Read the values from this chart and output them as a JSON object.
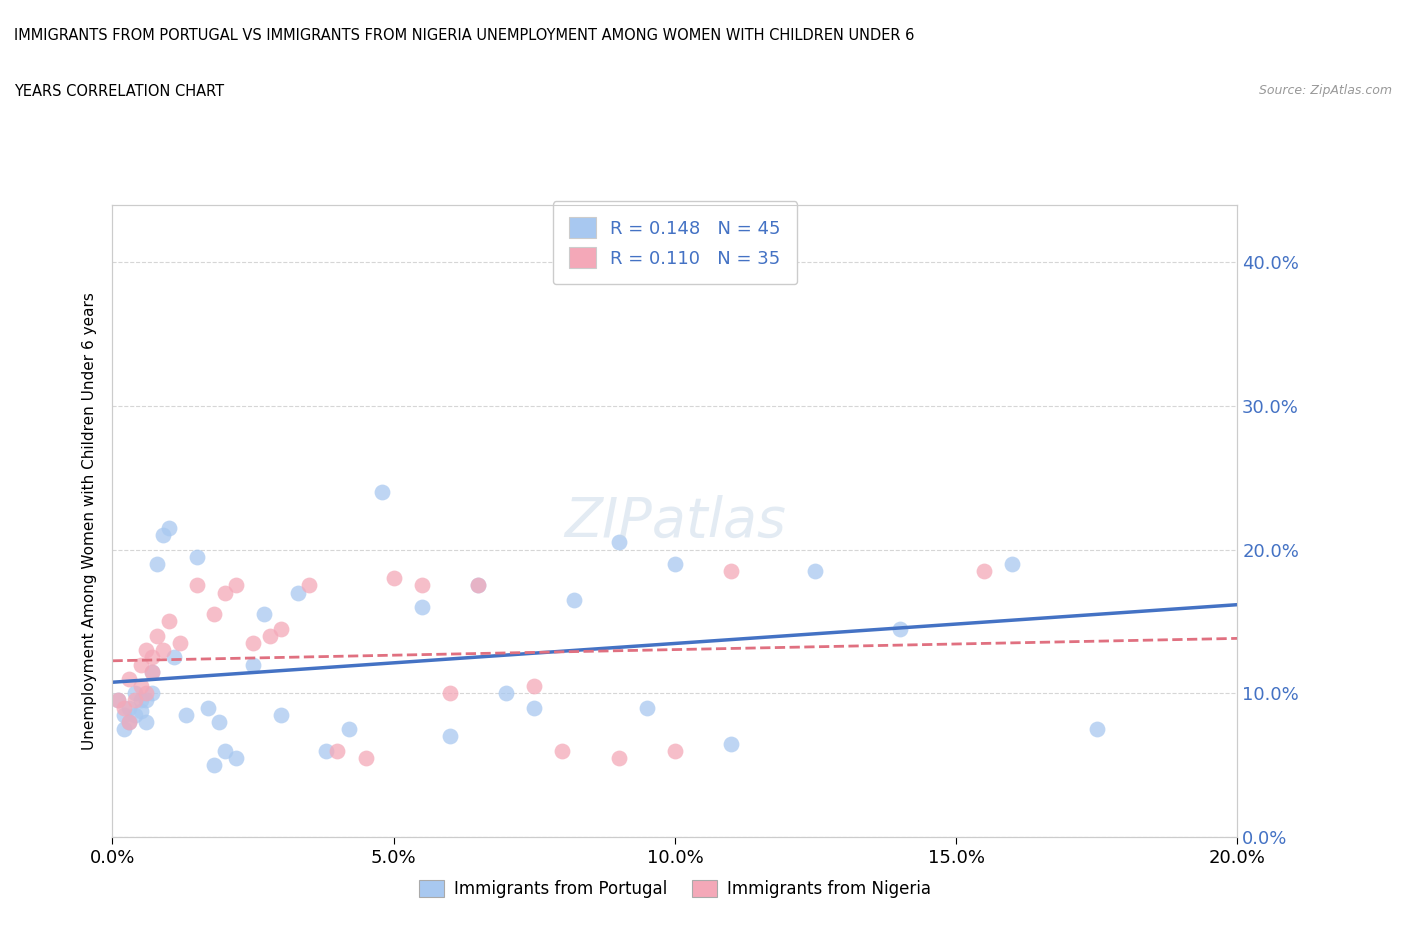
{
  "title_line1": "IMMIGRANTS FROM PORTUGAL VS IMMIGRANTS FROM NIGERIA UNEMPLOYMENT AMONG WOMEN WITH CHILDREN UNDER 6",
  "title_line2": "YEARS CORRELATION CHART",
  "source": "Source: ZipAtlas.com",
  "xlabel_portugal": "Immigrants from Portugal",
  "xlabel_nigeria": "Immigrants from Nigeria",
  "ylabel": "Unemployment Among Women with Children Under 6 years",
  "r_portugal": 0.148,
  "n_portugal": 45,
  "r_nigeria": 0.11,
  "n_nigeria": 35,
  "color_portugal": "#a8c8f0",
  "color_nigeria": "#f4a8b8",
  "color_trendline_portugal": "#4472c4",
  "color_trendline_nigeria": "#e07080",
  "color_right_axis": "#4472c4",
  "xlim": [
    0.0,
    0.2
  ],
  "ylim": [
    0.0,
    0.44
  ],
  "xticks": [
    0.0,
    0.05,
    0.1,
    0.15,
    0.2
  ],
  "yticks": [
    0.0,
    0.1,
    0.2,
    0.3,
    0.4
  ],
  "portugal_x": [
    0.001,
    0.002,
    0.002,
    0.003,
    0.003,
    0.004,
    0.004,
    0.005,
    0.005,
    0.006,
    0.006,
    0.007,
    0.007,
    0.008,
    0.009,
    0.01,
    0.011,
    0.013,
    0.015,
    0.017,
    0.018,
    0.019,
    0.02,
    0.022,
    0.025,
    0.027,
    0.03,
    0.033,
    0.038,
    0.042,
    0.048,
    0.055,
    0.06,
    0.065,
    0.07,
    0.075,
    0.082,
    0.09,
    0.095,
    0.1,
    0.11,
    0.125,
    0.14,
    0.16,
    0.175
  ],
  "portugal_y": [
    0.095,
    0.085,
    0.075,
    0.09,
    0.08,
    0.1,
    0.085,
    0.095,
    0.088,
    0.095,
    0.08,
    0.115,
    0.1,
    0.19,
    0.21,
    0.215,
    0.125,
    0.085,
    0.195,
    0.09,
    0.05,
    0.08,
    0.06,
    0.055,
    0.12,
    0.155,
    0.085,
    0.17,
    0.06,
    0.075,
    0.24,
    0.16,
    0.07,
    0.175,
    0.1,
    0.09,
    0.165,
    0.205,
    0.09,
    0.19,
    0.065,
    0.185,
    0.145,
    0.19,
    0.075
  ],
  "nigeria_x": [
    0.001,
    0.002,
    0.003,
    0.003,
    0.004,
    0.005,
    0.005,
    0.006,
    0.006,
    0.007,
    0.007,
    0.008,
    0.009,
    0.01,
    0.012,
    0.015,
    0.018,
    0.02,
    0.022,
    0.025,
    0.028,
    0.03,
    0.035,
    0.04,
    0.045,
    0.05,
    0.055,
    0.06,
    0.065,
    0.075,
    0.08,
    0.09,
    0.1,
    0.11,
    0.155
  ],
  "nigeria_y": [
    0.095,
    0.09,
    0.08,
    0.11,
    0.095,
    0.12,
    0.105,
    0.13,
    0.1,
    0.115,
    0.125,
    0.14,
    0.13,
    0.15,
    0.135,
    0.175,
    0.155,
    0.17,
    0.175,
    0.135,
    0.14,
    0.145,
    0.175,
    0.06,
    0.055,
    0.18,
    0.175,
    0.1,
    0.175,
    0.105,
    0.06,
    0.055,
    0.06,
    0.185,
    0.185
  ]
}
